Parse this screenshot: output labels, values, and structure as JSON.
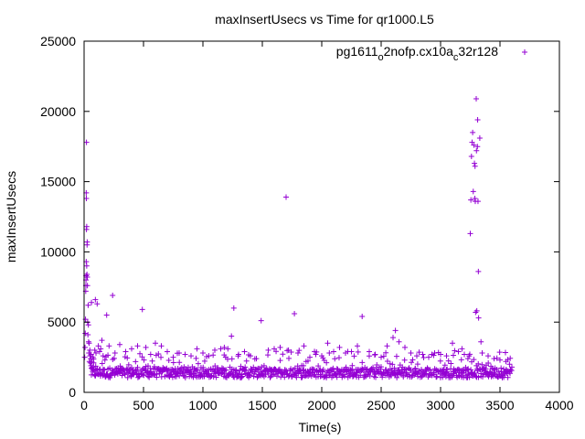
{
  "chart_data": {
    "type": "scatter",
    "title": "maxInsertUsecs vs Time for qr1000.L5",
    "xlabel": "Time(s)",
    "ylabel": "maxInsertUsecs",
    "xlim": [
      0,
      4000
    ],
    "ylim": [
      0,
      25000
    ],
    "xticks": [
      0,
      500,
      1000,
      1500,
      2000,
      2500,
      3000,
      3500,
      4000
    ],
    "yticks": [
      0,
      5000,
      10000,
      15000,
      20000,
      25000
    ],
    "grid": false,
    "legend_position": "top-right",
    "marker": "+",
    "series": [
      {
        "name": "pg1611_o2nofp.cx10a_c32r128",
        "name_parts": {
          "base": "pg1611",
          "sub1": "o",
          "mid": "2nofp.cx10a",
          "sub2": "c",
          "end": "32r128"
        },
        "color": "#9400d3",
        "dense_band": {
          "x_start": 60,
          "x_end": 3600,
          "y_min": 1050,
          "y_max": 1700,
          "count": 700
        },
        "scatter_band": {
          "x_start": 60,
          "x_end": 3600,
          "y_min": 1600,
          "y_max": 3000,
          "count": 200
        },
        "points": [
          [
            5,
            2500
          ],
          [
            8,
            3200
          ],
          [
            10,
            4200
          ],
          [
            12,
            5200
          ],
          [
            14,
            7200
          ],
          [
            15,
            7600
          ],
          [
            16,
            8000
          ],
          [
            17,
            8300
          ],
          [
            18,
            9300
          ],
          [
            18,
            14200
          ],
          [
            19,
            13800
          ],
          [
            20,
            17800
          ],
          [
            20,
            11600
          ],
          [
            22,
            11800
          ],
          [
            22,
            9000
          ],
          [
            24,
            8400
          ],
          [
            25,
            10500
          ],
          [
            26,
            10700
          ],
          [
            27,
            8200
          ],
          [
            28,
            7600
          ],
          [
            30,
            5000
          ],
          [
            32,
            4100
          ],
          [
            34,
            6200
          ],
          [
            36,
            4800
          ],
          [
            38,
            3600
          ],
          [
            40,
            2800
          ],
          [
            42,
            3500
          ],
          [
            45,
            2200
          ],
          [
            48,
            3000
          ],
          [
            50,
            2600
          ],
          [
            52,
            2100
          ],
          [
            55,
            2400
          ],
          [
            58,
            1900
          ],
          [
            60,
            2700
          ],
          [
            62,
            6400
          ],
          [
            65,
            2200
          ],
          [
            70,
            1800
          ],
          [
            75,
            2500
          ],
          [
            80,
            2100
          ],
          [
            90,
            3000
          ],
          [
            95,
            6600
          ],
          [
            100,
            2800
          ],
          [
            110,
            6300
          ],
          [
            120,
            3300
          ],
          [
            130,
            2900
          ],
          [
            140,
            3100
          ],
          [
            150,
            3700
          ],
          [
            160,
            2600
          ],
          [
            175,
            2300
          ],
          [
            190,
            5500
          ],
          [
            210,
            3300
          ],
          [
            240,
            6900
          ],
          [
            260,
            2800
          ],
          [
            300,
            3400
          ],
          [
            350,
            2900
          ],
          [
            400,
            3100
          ],
          [
            450,
            3300
          ],
          [
            490,
            5900
          ],
          [
            520,
            3200
          ],
          [
            560,
            2700
          ],
          [
            600,
            3500
          ],
          [
            650,
            3300
          ],
          [
            700,
            2900
          ],
          [
            750,
            2500
          ],
          [
            800,
            2800
          ],
          [
            850,
            2700
          ],
          [
            900,
            2600
          ],
          [
            950,
            3100
          ],
          [
            1000,
            2800
          ],
          [
            1050,
            2600
          ],
          [
            1100,
            3000
          ],
          [
            1150,
            3100
          ],
          [
            1180,
            3200
          ],
          [
            1210,
            3100
          ],
          [
            1240,
            4000
          ],
          [
            1260,
            6000
          ],
          [
            1300,
            2700
          ],
          [
            1350,
            2900
          ],
          [
            1400,
            2600
          ],
          [
            1450,
            2400
          ],
          [
            1490,
            5100
          ],
          [
            1550,
            3000
          ],
          [
            1600,
            3100
          ],
          [
            1650,
            3200
          ],
          [
            1700,
            13900
          ],
          [
            1720,
            3000
          ],
          [
            1770,
            5600
          ],
          [
            1800,
            2800
          ],
          [
            1850,
            3300
          ],
          [
            1900,
            2500
          ],
          [
            1950,
            2700
          ],
          [
            2000,
            2600
          ],
          [
            2050,
            3500
          ],
          [
            2100,
            2900
          ],
          [
            2150,
            3200
          ],
          [
            2200,
            2800
          ],
          [
            2250,
            2900
          ],
          [
            2300,
            3300
          ],
          [
            2340,
            5400
          ],
          [
            2400,
            2900
          ],
          [
            2450,
            2700
          ],
          [
            2500,
            2500
          ],
          [
            2550,
            3300
          ],
          [
            2600,
            3900
          ],
          [
            2620,
            4400
          ],
          [
            2650,
            3600
          ],
          [
            2700,
            3200
          ],
          [
            2750,
            2800
          ],
          [
            2800,
            2600
          ],
          [
            2850,
            2700
          ],
          [
            2900,
            2500
          ],
          [
            2950,
            2800
          ],
          [
            3000,
            2700
          ],
          [
            3050,
            2600
          ],
          [
            3100,
            3500
          ],
          [
            3150,
            2900
          ],
          [
            3180,
            3100
          ],
          [
            3200,
            2700
          ],
          [
            3230,
            2400
          ],
          [
            3240,
            2600
          ],
          [
            3250,
            11300
          ],
          [
            3255,
            13700
          ],
          [
            3260,
            16800
          ],
          [
            3265,
            17800
          ],
          [
            3270,
            18500
          ],
          [
            3275,
            14300
          ],
          [
            3280,
            17600
          ],
          [
            3285,
            16300
          ],
          [
            3288,
            13800
          ],
          [
            3290,
            16100
          ],
          [
            3292,
            13600
          ],
          [
            3295,
            5700
          ],
          [
            3300,
            20900
          ],
          [
            3302,
            17200
          ],
          [
            3305,
            5800
          ],
          [
            3310,
            17500
          ],
          [
            3312,
            19400
          ],
          [
            3315,
            13600
          ],
          [
            3318,
            8600
          ],
          [
            3320,
            5300
          ],
          [
            3330,
            18100
          ],
          [
            3340,
            3600
          ],
          [
            3350,
            2800
          ],
          [
            3400,
            2600
          ],
          [
            3450,
            2400
          ],
          [
            3500,
            2300
          ],
          [
            3550,
            2200
          ],
          [
            3580,
            2000
          ],
          [
            3600,
            1800
          ]
        ]
      }
    ]
  }
}
